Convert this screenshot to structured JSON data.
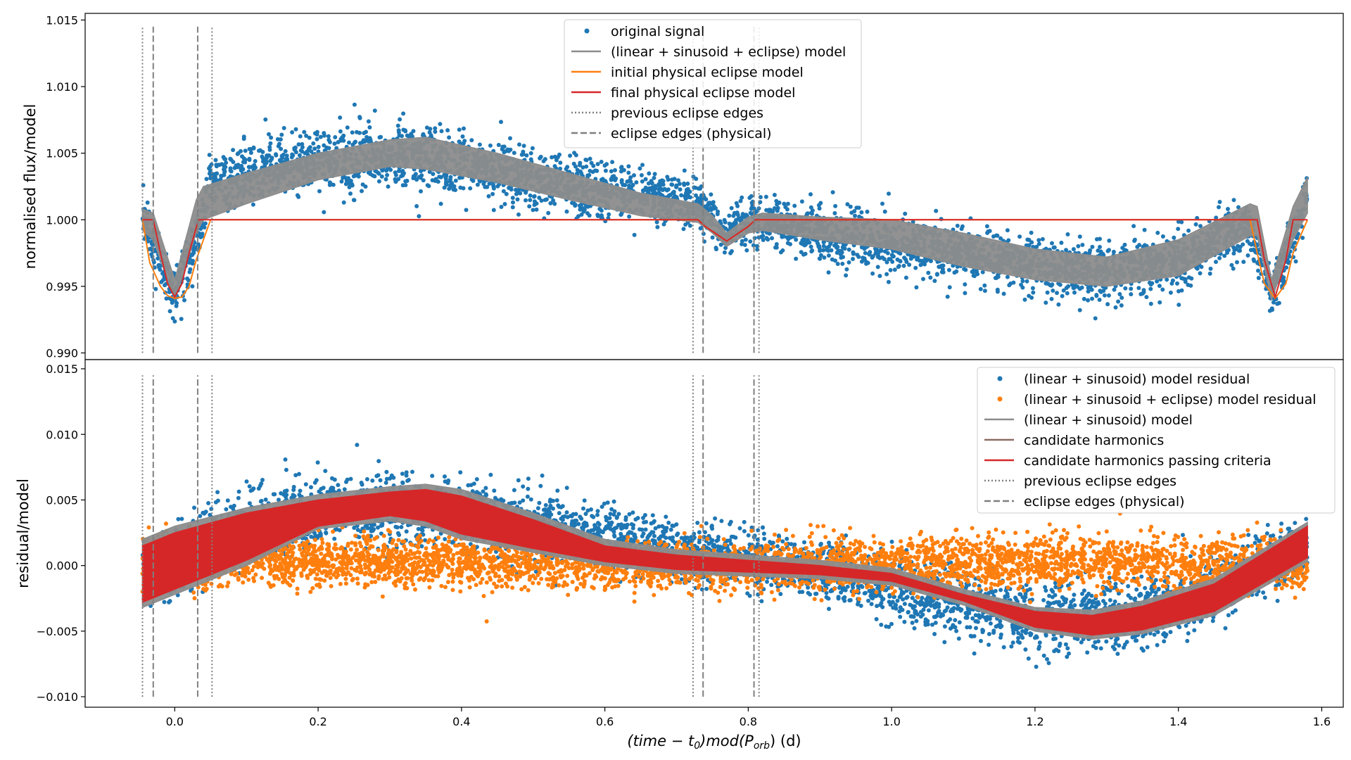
{
  "chart_data": [
    {
      "type": "scatter",
      "panel": "top",
      "ylabel": "normalised flux/model",
      "xlim": [
        -0.125,
        1.63
      ],
      "ylim": [
        0.9895,
        1.0155
      ],
      "yticks": [
        "0.990",
        "0.995",
        "1.000",
        "1.005",
        "1.010",
        "1.015"
      ],
      "ytick_values": [
        0.99,
        0.995,
        1.0,
        1.005,
        1.01,
        1.015
      ],
      "legend_position": "top-center",
      "legend": [
        {
          "label": "original signal",
          "style": "dot",
          "color": "#1f77b4"
        },
        {
          "label": "(linear + sinusoid + eclipse) model",
          "style": "line",
          "color": "#8c8c8c"
        },
        {
          "label": "initial physical eclipse model",
          "style": "line",
          "color": "#ff7f0e"
        },
        {
          "label": "final physical eclipse model",
          "style": "line",
          "color": "#d62728"
        },
        {
          "label": "previous eclipse edges",
          "style": "dotted",
          "color": "#808080"
        },
        {
          "label": "eclipse edges (physical)",
          "style": "dashed",
          "color": "#808080"
        }
      ],
      "series": [
        {
          "name": "original signal",
          "kind": "scatter-band",
          "x": [
            -0.045,
            -0.01,
            0.0,
            0.03,
            0.05,
            0.1,
            0.2,
            0.3,
            0.4,
            0.5,
            0.6,
            0.7,
            0.73,
            0.77,
            0.8,
            0.85,
            0.9,
            1.0,
            1.1,
            1.2,
            1.3,
            1.4,
            1.5,
            1.53,
            1.56,
            1.58
          ],
          "center": [
            1.0005,
            0.9955,
            0.9945,
            0.9985,
            1.0025,
            1.0035,
            1.0045,
            1.0048,
            1.004,
            1.003,
            1.002,
            1.0015,
            1.0012,
            0.9988,
            1.0,
            0.9995,
            0.9988,
            0.9982,
            0.9975,
            0.9965,
            0.996,
            0.997,
            0.9995,
            0.9945,
            0.9985,
            1.0015
          ],
          "spread": [
            0.0015,
            0.0017,
            0.0017,
            0.0018,
            0.0022,
            0.0022,
            0.0023,
            0.0023,
            0.0022,
            0.0021,
            0.0019,
            0.0016,
            0.0016,
            0.0012,
            0.0016,
            0.0017,
            0.0017,
            0.0018,
            0.0019,
            0.002,
            0.0021,
            0.002,
            0.0017,
            0.0017,
            0.0018,
            0.0015
          ]
        },
        {
          "name": "(linear + sinusoid + eclipse) model",
          "kind": "band",
          "x": [
            -0.045,
            -0.03,
            0.0,
            0.03,
            0.04,
            0.1,
            0.2,
            0.3,
            0.35,
            0.45,
            0.55,
            0.65,
            0.73,
            0.75,
            0.77,
            0.8,
            0.82,
            0.9,
            1.0,
            1.1,
            1.2,
            1.3,
            1.4,
            1.5,
            1.51,
            1.53,
            1.56,
            1.58
          ],
          "upper": [
            1.0008,
            1.0005,
            0.9955,
            1.0015,
            1.0025,
            1.0035,
            1.005,
            1.006,
            1.0062,
            1.005,
            1.0035,
            1.002,
            1.0012,
            1.0003,
            0.999,
            1.0002,
            1.0005,
            1.0002,
            1.0,
            0.999,
            0.9978,
            0.9972,
            0.9985,
            1.0012,
            1.001,
            0.9955,
            1.001,
            1.0032
          ],
          "lower": [
            0.9992,
            0.9985,
            0.994,
            0.999,
            1.0,
            1.0012,
            1.003,
            1.004,
            1.0038,
            1.0028,
            1.0015,
            1.0003,
            0.9998,
            0.999,
            0.998,
            0.999,
            0.9992,
            0.9985,
            0.9978,
            0.9965,
            0.9955,
            0.995,
            0.9958,
            0.9988,
            0.9988,
            0.994,
            0.9985,
            1.0005
          ]
        },
        {
          "name": "initial physical eclipse model",
          "kind": "line",
          "x": [
            -0.045,
            -0.035,
            -0.02,
            -0.01,
            0.0,
            0.01,
            0.02,
            0.03,
            0.04,
            0.05,
            0.73,
            0.74,
            0.77,
            0.8,
            0.81,
            1.5,
            1.51,
            1.52,
            1.535,
            1.55,
            1.56,
            1.58
          ],
          "y": [
            1.0,
            0.9968,
            0.995,
            0.9943,
            0.9941,
            0.9942,
            0.995,
            0.997,
            0.9985,
            1.0,
            1.0,
            0.9995,
            0.9984,
            0.9995,
            1.0,
            1.0,
            0.9975,
            0.9952,
            0.9941,
            0.9952,
            0.9975,
            1.0
          ]
        },
        {
          "name": "final physical eclipse model",
          "kind": "line",
          "x": [
            -0.045,
            -0.03,
            -0.02,
            -0.01,
            0.0,
            0.01,
            0.02,
            0.033,
            0.73,
            0.74,
            0.77,
            0.8,
            0.81,
            1.51,
            1.52,
            1.535,
            1.55,
            1.56,
            1.58
          ],
          "y": [
            1.0,
            1.0,
            0.9975,
            0.9952,
            0.9942,
            0.9952,
            0.9975,
            1.0,
            1.0,
            0.9995,
            0.9984,
            0.9995,
            1.0,
            1.0,
            0.997,
            0.9942,
            0.997,
            1.0,
            1.0
          ]
        }
      ],
      "vlines_dotted": [
        -0.045,
        0.052,
        0.723,
        0.815
      ],
      "vlines_dashed": [
        -0.03,
        0.032,
        0.737,
        0.808
      ],
      "vline_range": [
        0.99,
        1.0145
      ]
    },
    {
      "type": "scatter",
      "panel": "bottom",
      "ylabel": "residual/model",
      "xlabel": "(time − t0)mod(Porb) (d)",
      "xlim": [
        -0.125,
        1.63
      ],
      "ylim": [
        -0.0108,
        0.0157
      ],
      "xticks": [
        "0.0",
        "0.2",
        "0.4",
        "0.6",
        "0.8",
        "1.0",
        "1.2",
        "1.4",
        "1.6"
      ],
      "xtick_values": [
        0.0,
        0.2,
        0.4,
        0.6,
        0.8,
        1.0,
        1.2,
        1.4,
        1.6
      ],
      "yticks": [
        "−0.010",
        "−0.005",
        "0.000",
        "0.005",
        "0.010",
        "0.015"
      ],
      "ytick_values": [
        -0.01,
        -0.005,
        0.0,
        0.005,
        0.01,
        0.015
      ],
      "legend_position": "top-right",
      "legend": [
        {
          "label": "(linear + sinusoid) model residual",
          "style": "dot",
          "color": "#1f77b4"
        },
        {
          "label": "(linear + sinusoid + eclipse) model residual",
          "style": "dot",
          "color": "#ff7f0e"
        },
        {
          "label": "(linear + sinusoid) model",
          "style": "line",
          "color": "#8c8c8c"
        },
        {
          "label": "candidate harmonics",
          "style": "line",
          "color": "#8c6d62"
        },
        {
          "label": "candidate harmonics passing criteria",
          "style": "line",
          "color": "#d62728"
        },
        {
          "label": "previous eclipse edges",
          "style": "dotted",
          "color": "#808080"
        },
        {
          "label": "eclipse edges (physical)",
          "style": "dashed",
          "color": "#808080"
        }
      ],
      "series": [
        {
          "name": "(linear + sinusoid) model residual",
          "kind": "scatter-band",
          "x": [
            -0.045,
            0.0,
            0.05,
            0.1,
            0.2,
            0.3,
            0.4,
            0.5,
            0.6,
            0.7,
            0.8,
            0.9,
            1.0,
            1.1,
            1.2,
            1.3,
            1.4,
            1.5,
            1.58
          ],
          "center": [
            0.0,
            -0.0005,
            0.002,
            0.003,
            0.004,
            0.0045,
            0.004,
            0.003,
            0.002,
            0.001,
            0.0005,
            -0.0005,
            -0.0015,
            -0.003,
            -0.004,
            -0.004,
            -0.003,
            -0.0005,
            0.0015
          ],
          "spread": [
            0.002,
            0.0023,
            0.0025,
            0.0025,
            0.0025,
            0.0025,
            0.0025,
            0.0023,
            0.0021,
            0.002,
            0.002,
            0.002,
            0.0021,
            0.0022,
            0.0023,
            0.0023,
            0.0022,
            0.0021,
            0.002
          ]
        },
        {
          "name": "(linear + sinusoid + eclipse) model residual",
          "kind": "scatter-band",
          "x": [
            -0.045,
            0.1,
            0.3,
            0.5,
            0.7,
            0.9,
            1.1,
            1.3,
            1.5,
            1.58
          ],
          "center": [
            0.0005,
            0.0005,
            0.0003,
            0.0002,
            0.0,
            0.0,
            0.0003,
            0.0002,
            0.0,
            0.0
          ],
          "spread": [
            0.0018,
            0.0018,
            0.0017,
            0.0017,
            0.0017,
            0.0018,
            0.0018,
            0.0018,
            0.0018,
            0.0018
          ]
        },
        {
          "name": "(linear + sinusoid) model",
          "kind": "band",
          "x": [
            -0.045,
            0.0,
            0.1,
            0.2,
            0.3,
            0.35,
            0.4,
            0.5,
            0.6,
            0.7,
            0.8,
            0.9,
            1.0,
            1.1,
            1.2,
            1.28,
            1.35,
            1.45,
            1.58
          ],
          "upper": [
            0.002,
            0.003,
            0.0044,
            0.0054,
            0.006,
            0.0062,
            0.0058,
            0.004,
            0.002,
            0.0012,
            0.0008,
            0.0004,
            -0.0002,
            -0.0018,
            -0.0032,
            -0.0034,
            -0.0027,
            -0.001,
            0.0033
          ],
          "lower": [
            -0.0032,
            -0.0022,
            0.0,
            0.0028,
            0.0034,
            0.003,
            0.002,
            0.001,
            0.0,
            -0.0006,
            -0.0008,
            -0.001,
            -0.0015,
            -0.003,
            -0.005,
            -0.0056,
            -0.0052,
            -0.0038,
            0.0003
          ]
        },
        {
          "name": "candidate harmonics passing criteria",
          "kind": "band",
          "x": [
            -0.045,
            0.0,
            0.1,
            0.2,
            0.3,
            0.35,
            0.4,
            0.5,
            0.6,
            0.7,
            0.8,
            0.9,
            1.0,
            1.1,
            1.2,
            1.28,
            1.35,
            1.45,
            1.58
          ],
          "upper": [
            0.0015,
            0.0025,
            0.004,
            0.005,
            0.0056,
            0.0058,
            0.0053,
            0.0035,
            0.0015,
            0.0008,
            0.0004,
            0.0,
            -0.0006,
            -0.0022,
            -0.0035,
            -0.0038,
            -0.0031,
            -0.0014,
            0.003
          ],
          "lower": [
            -0.0028,
            -0.0018,
            0.0004,
            0.003,
            0.0038,
            0.0034,
            0.0024,
            0.0013,
            0.0003,
            -0.0003,
            -0.0005,
            -0.0007,
            -0.0012,
            -0.0027,
            -0.0047,
            -0.0053,
            -0.0049,
            -0.0035,
            0.0006
          ]
        }
      ],
      "vlines_dotted": [
        -0.045,
        0.052,
        0.723,
        0.815
      ],
      "vlines_dashed": [
        -0.03,
        0.032,
        0.737,
        0.808
      ],
      "vline_range": [
        -0.01,
        0.0145
      ]
    }
  ]
}
